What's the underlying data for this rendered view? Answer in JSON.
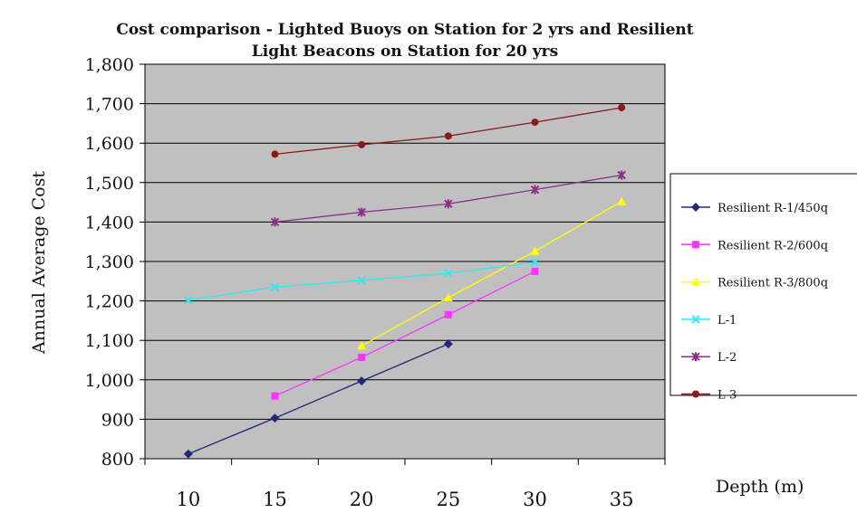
{
  "chart_data": {
    "type": "line",
    "title": "Cost comparison - Lighted Buoys on Station for 2 yrs and Resilient Light Beacons on Station for 20 yrs",
    "title_lines": [
      "Cost comparison - Lighted Buoys on Station for 2 yrs and Resilient",
      "Light Beacons on Station for 20 yrs"
    ],
    "xlabel": "Depth (m)",
    "ylabel": "Annual Average Cost",
    "categories": [
      "10",
      "15",
      "20",
      "25",
      "30",
      "35"
    ],
    "x_tick_labels": [
      "10",
      "15",
      "20",
      "25",
      "30",
      "35"
    ],
    "y_tick_labels": [
      "800",
      "900",
      "1,000",
      "1,100",
      "1,200",
      "1,300",
      "1,400",
      "1,500",
      "1,600",
      "1,700",
      "1,800"
    ],
    "ylim": [
      800,
      1800
    ],
    "grid": "horizontal",
    "legend_position": "right",
    "plot_background": "#c0c0c0",
    "series": [
      {
        "name": "Resilient R-1/450q",
        "color": "#1f2a7a",
        "marker": "diamond",
        "x": [
          10,
          15,
          20,
          25
        ],
        "values": [
          812,
          903,
          997,
          1091
        ]
      },
      {
        "name": "Resilient R-2/600q",
        "color": "#ff33ff",
        "marker": "square",
        "x": [
          15,
          20,
          25,
          30
        ],
        "values": [
          959,
          1057,
          1165,
          1275
        ]
      },
      {
        "name": "Resilient R-3/800q",
        "color": "#ffff00",
        "marker": "triangle",
        "x": [
          20,
          25,
          30,
          35
        ],
        "values": [
          1086,
          1208,
          1326,
          1452
        ]
      },
      {
        "name": "L-1",
        "color": "#33e6f2",
        "marker": "x",
        "x": [
          10,
          15,
          20,
          25,
          30
        ],
        "values": [
          1202,
          1235,
          1252,
          1270,
          1298
        ]
      },
      {
        "name": "L-2",
        "color": "#8b2e8b",
        "marker": "star",
        "x": [
          15,
          20,
          25,
          30,
          35
        ],
        "values": [
          1400,
          1425,
          1446,
          1482,
          1519
        ]
      },
      {
        "name": "L-3",
        "color": "#8b1a1a",
        "marker": "circle",
        "x": [
          15,
          20,
          25,
          30,
          35
        ],
        "values": [
          1572,
          1596,
          1618,
          1653,
          1690
        ]
      }
    ]
  }
}
